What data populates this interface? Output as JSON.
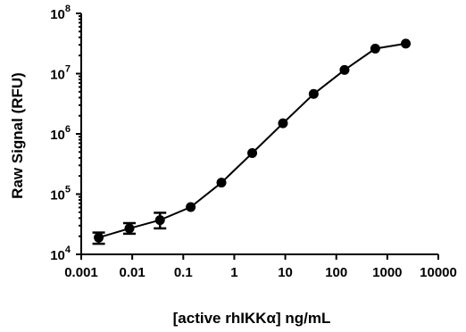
{
  "chart_data": {
    "type": "scatter",
    "title": "",
    "xlabel": "[active rhIKKα] ng/mL",
    "ylabel": "Raw  Signal (RFU)",
    "x_scale": "log",
    "y_scale": "log",
    "xlim": [
      0.001,
      10000
    ],
    "ylim": [
      10000,
      100000000
    ],
    "x_ticks": [
      "0.001",
      "0.01",
      "0.1",
      "1",
      "10",
      "100",
      "1000",
      "10000"
    ],
    "y_ticks": [
      {
        "base": "10",
        "exp": "4"
      },
      {
        "base": "10",
        "exp": "5"
      },
      {
        "base": "10",
        "exp": "6"
      },
      {
        "base": "10",
        "exp": "7"
      },
      {
        "base": "10",
        "exp": "8"
      }
    ],
    "grid": false,
    "points": [
      {
        "x": 0.0022,
        "y": 19000,
        "err_low": 15000,
        "err_high": 23000
      },
      {
        "x": 0.0088,
        "y": 27000,
        "err_low": 22000,
        "err_high": 33000
      },
      {
        "x": 0.035,
        "y": 37000,
        "err_low": 27000,
        "err_high": 49000
      },
      {
        "x": 0.14,
        "y": 61000
      },
      {
        "x": 0.56,
        "y": 155000
      },
      {
        "x": 2.25,
        "y": 480000
      },
      {
        "x": 9.0,
        "y": 1500000
      },
      {
        "x": 36,
        "y": 4600000
      },
      {
        "x": 145,
        "y": 11500000
      },
      {
        "x": 580,
        "y": 26000000
      },
      {
        "x": 2300,
        "y": 31500000
      }
    ]
  }
}
